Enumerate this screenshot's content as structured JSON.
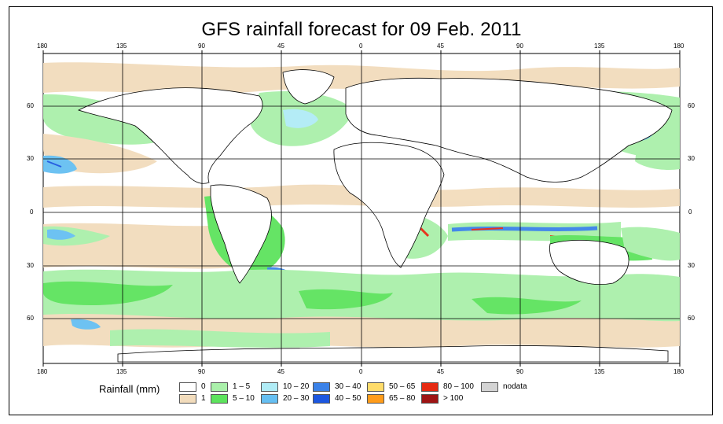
{
  "title": "GFS rainfall forecast for 09 Feb. 2011",
  "lon_labels_top": [
    "180",
    "135",
    "90",
    "45",
    "0",
    "45",
    "90",
    "135",
    "180"
  ],
  "lon_labels_bottom": [
    "180",
    "135",
    "90",
    "45",
    "0",
    "45",
    "90",
    "135",
    "180"
  ],
  "lat_labels": [
    "60",
    "30",
    "0",
    "30",
    "60"
  ],
  "legend": {
    "title": "Rainfall (mm)",
    "items": [
      {
        "label": "0",
        "color": "#ffffff"
      },
      {
        "label": "1",
        "color": "#f2dcbc"
      },
      {
        "label": "1 – 5",
        "color": "#aaf0aa"
      },
      {
        "label": "5 – 10",
        "color": "#5de35d"
      },
      {
        "label": "10 – 20",
        "color": "#b0ecf6"
      },
      {
        "label": "20 – 30",
        "color": "#66bff2"
      },
      {
        "label": "30 – 40",
        "color": "#3b82e8"
      },
      {
        "label": "40 – 50",
        "color": "#1c57e0"
      },
      {
        "label": "50 – 65",
        "color": "#ffdc6a"
      },
      {
        "label": "65 – 80",
        "color": "#ff9c1a"
      },
      {
        "label": "80 – 100",
        "color": "#e62a12"
      },
      {
        "label": "> 100",
        "color": "#9e1414"
      },
      {
        "label": "nodata",
        "color": "#d4d4d4"
      }
    ]
  }
}
